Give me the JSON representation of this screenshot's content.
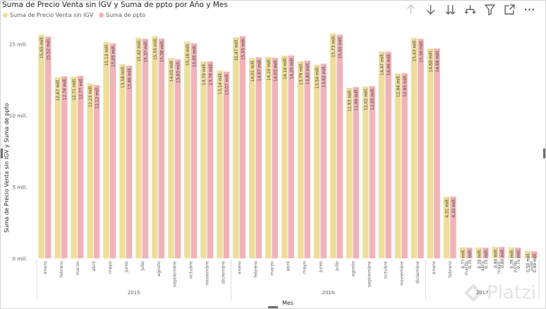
{
  "title": "Suma de Precio Venta sin IGV y Suma de ppto por Año y Mes",
  "watermark_text": "Platzi",
  "chart_data": {
    "type": "bar",
    "title": "Suma de Precio Venta sin IGV y Suma de ppto por Año y Mes",
    "xlabel": "Mes",
    "ylabel": "Suma de Precio Venta sin IGV y Suma de ppto",
    "ylim": [
      0,
      16.6
    ],
    "yticks": [
      0,
      5,
      10,
      15
    ],
    "ytick_labels": [
      "0 mill.",
      "5 mill.",
      "10 mill.",
      "15 mill."
    ],
    "legend_position": "top-left",
    "grid": false,
    "categories": [
      "enero",
      "febrero",
      "marzo",
      "abril",
      "mayo",
      "junio",
      "julio",
      "agosto",
      "septiembre",
      "octubre",
      "noviembre",
      "diciembre",
      "enero",
      "febrero",
      "marzo",
      "abril",
      "mayo",
      "junio",
      "julio",
      "agosto",
      "septiembre",
      "octubre",
      "noviembre",
      "diciembre",
      "enero",
      "febrero",
      "marzo",
      "abril",
      "mayo",
      "junio",
      "julio"
    ],
    "groups": [
      {
        "label": "2015",
        "count": 12
      },
      {
        "label": "2016",
        "count": 12
      },
      {
        "label": "2017",
        "count": 7
      }
    ],
    "series": [
      {
        "name": "Suma de Precio Venta sin IGV",
        "color": "#EEDE9C",
        "values": [
          15.65,
          12.67,
          12.71,
          12.23,
          15.13,
          13.58,
          15.42,
          15.55,
          14.02,
          15.16,
          13.78,
          13.14,
          15.47,
          14.01,
          14.1,
          14.18,
          13.79,
          13.54,
          15.73,
          11.93,
          12.02,
          14.47,
          12.94,
          15.43,
          14.68,
          4.31,
          0.77,
          0.76,
          0.8,
          0.76,
          0.5
        ],
        "labels": [
          "15,65 mill.",
          "12,67 mill.",
          "12,71 mill.",
          "12,23 mill.",
          "15,13 mill.",
          "13,58 mill.",
          "15,42 mill.",
          "15,55 mill.",
          "14,02 mill.",
          "15,16 mill.",
          "13,78 mill.",
          "13,14 mill.",
          "15,47 mill.",
          "14,01 mill.",
          "14,10 mill.",
          "14,18 mill.",
          "13,79 mill.",
          "13,54 mill.",
          "15,73 mill.",
          "11,93 mill.",
          "12,02 mill.",
          "14,47 mill.",
          "12,94 mill.",
          "15,43 mill.",
          "14,68 mill.",
          "4,31 mill.",
          "0,77 mill.",
          "0,76 mill.",
          "0,80 mill.",
          "0,76 mill.",
          "0,50 mill."
        ]
      },
      {
        "name": "Suma de ppto",
        "color": "#F1B3B8",
        "values": [
          15.52,
          12.74,
          12.77,
          12.12,
          15.05,
          13.48,
          15.37,
          15.38,
          13.93,
          15.05,
          13.78,
          13.07,
          15.55,
          14.07,
          14.03,
          14.2,
          13.83,
          13.62,
          15.65,
          11.99,
          12.05,
          14.46,
          12.95,
          15.36,
          14.68,
          4.32,
          0.75,
          0.75,
          0.8,
          0.75,
          0.49
        ],
        "labels": [
          "15,52 mill.",
          "12,74 mill.",
          "12,77 mill.",
          "12,12 mill.",
          "15,05 mill.",
          "13,48 mill.",
          "15,37 mill.",
          "15,38 mill.",
          "13,93 mill.",
          "15,05 mill.",
          "13,78 mill.",
          "13,07 mill.",
          "15,55 mill.",
          "14,07 mill.",
          "14,03 mill.",
          "14,20 mill.",
          "13,83 mill.",
          "13,62 mill.",
          "15,65 mill.",
          "11,99 mill.",
          "12,05 mill.",
          "14,46 mill.",
          "12,95 mill.",
          "15,36 mill.",
          "14,68 mill.",
          "4,32 mill.",
          "0,75 mill.",
          "0,75 mill.",
          "0,80 mill.",
          "0,75 mill.",
          "0,49 mill."
        ]
      }
    ]
  }
}
